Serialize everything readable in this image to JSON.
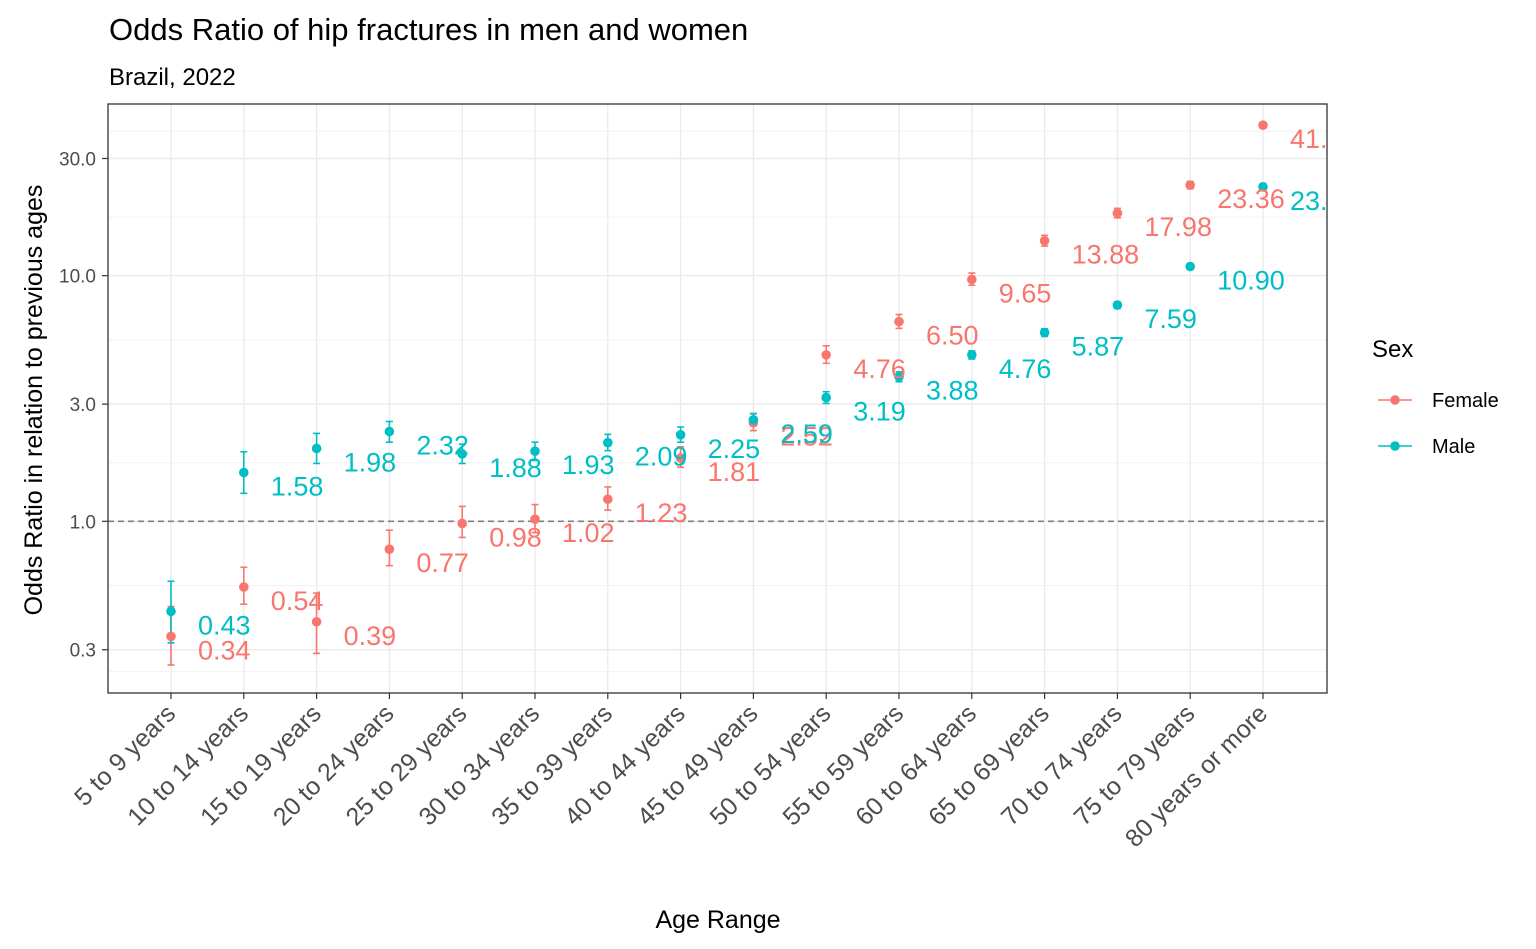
{
  "chart_data": {
    "type": "scatter",
    "title": "Odds Ratio of hip fractures in men and women",
    "subtitle": "Brazil, 2022",
    "xlabel": "Age Range",
    "ylabel": "Odds Ratio in relation to previous ages",
    "y_scale": "log10",
    "ylim": [
      0.2,
      50
    ],
    "yticks": [
      0.3,
      1.0,
      3.0,
      10.0,
      30.0
    ],
    "ytick_labels": [
      "0.3",
      "1.0",
      "3.0",
      "10.0",
      "30.0"
    ],
    "reference_line": {
      "y": 1.0,
      "style": "dashed",
      "color": "#808080"
    },
    "grid": true,
    "legend": {
      "title": "Sex",
      "position": "right"
    },
    "categories": [
      "5 to 9 years",
      "10 to 14 years",
      "15 to 19 years",
      "20 to 24 years",
      "25 to 29 years",
      "30 to 34 years",
      "35 to 39 years",
      "40 to 44 years",
      "45 to 49 years",
      "50 to 54 years",
      "55 to 59 years",
      "60 to 64 years",
      "65 to 69 years",
      "70 to 74 years",
      "75 to 79 years",
      "80 years or more"
    ],
    "series": [
      {
        "name": "Female",
        "color": "#F8766D",
        "values": [
          0.34,
          0.54,
          0.39,
          0.77,
          0.98,
          1.02,
          1.23,
          1.81,
          2.52,
          4.76,
          6.5,
          9.65,
          13.88,
          17.98,
          23.36,
          41.0
        ],
        "lower": [
          0.26,
          0.46,
          0.29,
          0.66,
          0.86,
          0.9,
          1.11,
          1.66,
          2.34,
          4.4,
          6.1,
          9.15,
          13.2,
          17.2,
          22.6,
          40.0
        ],
        "upper": [
          0.45,
          0.65,
          0.51,
          0.92,
          1.15,
          1.17,
          1.38,
          2.01,
          2.75,
          5.18,
          6.95,
          10.25,
          14.6,
          18.8,
          24.2,
          42.1
        ],
        "labels": [
          "0.34",
          "0.54",
          "0.39",
          "0.77",
          "0.98",
          "1.02",
          "1.23",
          "1.81",
          "2.52",
          "4.76",
          "6.50",
          "9.65",
          "13.88",
          "17.98",
          "23.36",
          "41."
        ]
      },
      {
        "name": "Male",
        "color": "#00BFC4",
        "values": [
          0.43,
          1.58,
          1.98,
          2.32,
          1.88,
          1.93,
          2.09,
          2.25,
          2.59,
          3.19,
          3.88,
          4.76,
          5.87,
          7.59,
          10.9,
          23.0
        ],
        "lower": [
          0.32,
          1.3,
          1.72,
          2.1,
          1.72,
          1.77,
          1.94,
          2.1,
          2.45,
          3.02,
          3.7,
          4.58,
          5.66,
          7.36,
          10.65,
          22.3
        ],
        "upper": [
          0.57,
          1.92,
          2.28,
          2.55,
          2.06,
          2.1,
          2.26,
          2.42,
          2.74,
          3.37,
          4.06,
          4.94,
          6.08,
          7.82,
          11.15,
          23.7
        ],
        "labels": [
          "0.43",
          "1.58",
          "1.98",
          "2.32",
          "1.88",
          "1.93",
          "2.09",
          "2.25",
          "2.59",
          "3.19",
          "3.88",
          "4.76",
          "5.87",
          "7.59",
          "10.90",
          "23."
        ]
      }
    ]
  }
}
